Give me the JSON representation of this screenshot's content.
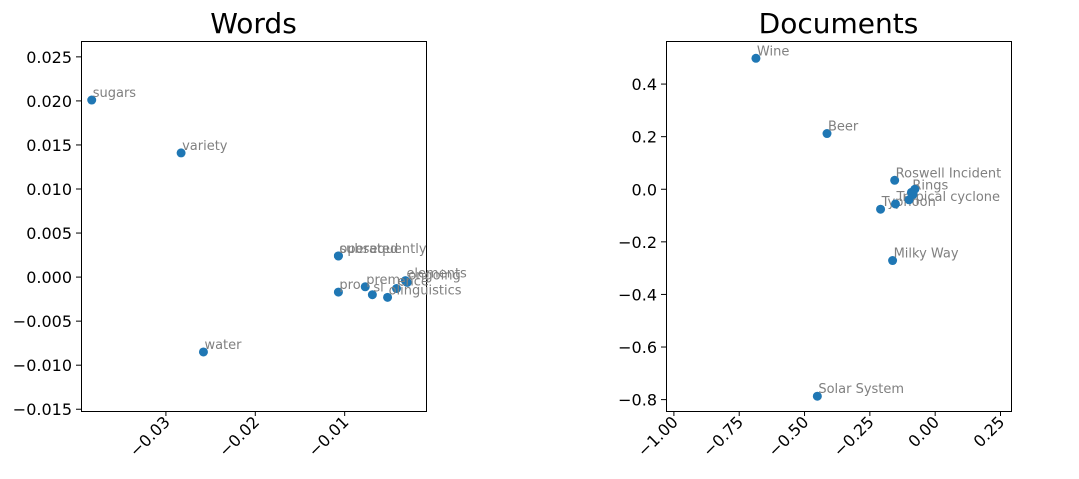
{
  "chart_data": [
    {
      "type": "scatter",
      "title": "Words",
      "xlabel": "",
      "ylabel": "",
      "xlim": [
        -0.0395,
        -0.0009
      ],
      "ylim": [
        -0.0152,
        0.0268
      ],
      "xticks": [
        -0.03,
        -0.02,
        -0.01
      ],
      "xtick_labels": [
        "−0.03",
        "−0.02",
        "−0.01"
      ],
      "yticks": [
        0.025,
        0.02,
        0.015,
        0.01,
        0.005,
        0.0,
        -0.005,
        -0.01,
        -0.015
      ],
      "ytick_labels": [
        "0.025",
        "0.020",
        "0.015",
        "0.010",
        "0.005",
        "0.000",
        "−0.005",
        "−0.010",
        "−0.015"
      ],
      "grid": false,
      "marker_color": "#1f77b4",
      "label_color": "#808080",
      "points": [
        {
          "label": "sugars",
          "x": -0.0383,
          "y": 0.0201
        },
        {
          "label": "variety",
          "x": -0.0283,
          "y": 0.0141
        },
        {
          "label": "water",
          "x": -0.0258,
          "y": -0.0085
        },
        {
          "label": "operated",
          "x": -0.0107,
          "y": 0.0024
        },
        {
          "label": "subsequently",
          "x": -0.0107,
          "y": 0.0024
        },
        {
          "label": "pro",
          "x": -0.0107,
          "y": -0.0017
        },
        {
          "label": "prem",
          "x": -0.0077,
          "y": -0.0011
        },
        {
          "label": "sl",
          "x": -0.0069,
          "y": -0.002
        },
        {
          "label": "elements",
          "x": -0.0032,
          "y": -0.0004
        },
        {
          "label": "ongoing",
          "x": -0.003,
          "y": -0.0006
        },
        {
          "label": "ence",
          "x": -0.0042,
          "y": -0.0013
        },
        {
          "label": "olinguistics",
          "x": -0.0052,
          "y": -0.0023
        }
      ]
    },
    {
      "type": "scatter",
      "title": "Documents",
      "xlabel": "",
      "ylabel": "",
      "xlim": [
        -1.0302,
        0.2902
      ],
      "ylim": [
        -0.8433,
        0.5638
      ],
      "xticks": [
        -1.0,
        -0.75,
        -0.5,
        -0.25,
        0.0,
        0.25
      ],
      "xtick_labels": [
        "−1.00",
        "−0.75",
        "−0.50",
        "−0.25",
        "0.00",
        "0.25"
      ],
      "yticks": [
        0.4,
        0.2,
        0.0,
        -0.2,
        -0.4,
        -0.6,
        -0.8
      ],
      "ytick_labels": [
        "0.4",
        "0.2",
        "0.0",
        "−0.2",
        "−0.4",
        "−0.6",
        "−0.8"
      ],
      "grid": false,
      "marker_color": "#1f77b4",
      "label_color": "#808080",
      "points": [
        {
          "label": "Wine",
          "x": -0.686,
          "y": 0.498
        },
        {
          "label": "Beer",
          "x": -0.414,
          "y": 0.212
        },
        {
          "label": "Roswell Incident",
          "x": -0.155,
          "y": 0.034
        },
        {
          "label": "Typhoon",
          "x": -0.209,
          "y": -0.076
        },
        {
          "label": "Tropical cyclone",
          "x": -0.152,
          "y": -0.056
        },
        {
          "label": "Rings",
          "x": -0.091,
          "y": -0.012
        },
        {
          "label": "Milky Way",
          "x": -0.163,
          "y": -0.271
        },
        {
          "label": "Solar System",
          "x": -0.451,
          "y": -0.787
        },
        {
          "label": "",
          "x": -0.078,
          "y": 0.0
        },
        {
          "label": "",
          "x": -0.085,
          "y": -0.02
        },
        {
          "label": "",
          "x": -0.1,
          "y": -0.04
        }
      ]
    }
  ]
}
